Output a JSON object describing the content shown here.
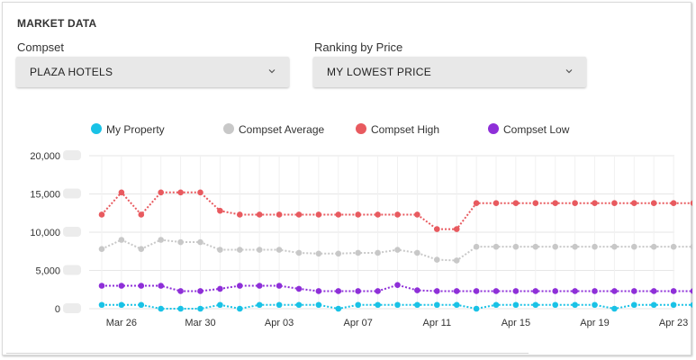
{
  "panel": {
    "title": "MARKET DATA"
  },
  "compset": {
    "label": "Compset",
    "value": "PLAZA HOTELS"
  },
  "ranking": {
    "label": "Ranking by Price",
    "value": "MY LOWEST PRICE"
  },
  "colors": {
    "my_property": "#19c2e6",
    "compset_average": "#c8c8c8",
    "compset_high": "#e85a5f",
    "compset_low": "#8e2fd8"
  },
  "icons": {
    "dropdown": "chevron-down-icon"
  },
  "chart_data": {
    "type": "line",
    "legend": {
      "placement": "top",
      "items": [
        "My Property",
        "Compset Average",
        "Compset High",
        "Compset Low"
      ]
    },
    "x": [
      "Mar 25",
      "Mar 26",
      "Mar 27",
      "Mar 28",
      "Mar 29",
      "Mar 30",
      "Mar 31",
      "Apr 01",
      "Apr 02",
      "Apr 03",
      "Apr 04",
      "Apr 05",
      "Apr 06",
      "Apr 07",
      "Apr 08",
      "Apr 09",
      "Apr 10",
      "Apr 11",
      "Apr 12",
      "Apr 13",
      "Apr 14",
      "Apr 15",
      "Apr 16",
      "Apr 17",
      "Apr 18",
      "Apr 19",
      "Apr 20",
      "Apr 21",
      "Apr 22",
      "Apr 23",
      "Apr 24"
    ],
    "x_tick_labels": [
      "Mar 26",
      "Mar 30",
      "Apr 03",
      "Apr 07",
      "Apr 11",
      "Apr 15",
      "Apr 19",
      "Apr 23"
    ],
    "y_tick_labels": [
      "20,000",
      "15,000",
      "10,000",
      "5,000",
      "0"
    ],
    "ylim": [
      0,
      20000
    ],
    "grid": true,
    "series": [
      {
        "name": "Compset High",
        "color": "#e85a5f",
        "values": [
          12300,
          15200,
          12300,
          15200,
          15200,
          15200,
          12800,
          12300,
          12300,
          12300,
          12300,
          12300,
          12300,
          12300,
          12300,
          12300,
          12300,
          10400,
          10400,
          13800,
          13800,
          13800,
          13800,
          13800,
          13800,
          13800,
          13800,
          13800,
          13800,
          13800,
          13800
        ]
      },
      {
        "name": "Compset Average",
        "color": "#c8c8c8",
        "values": [
          7800,
          9000,
          7800,
          9000,
          8700,
          8700,
          7700,
          7700,
          7700,
          7700,
          7300,
          7200,
          7200,
          7300,
          7300,
          7700,
          7300,
          6400,
          6300,
          8100,
          8100,
          8100,
          8100,
          8100,
          8100,
          8100,
          8100,
          8100,
          8100,
          8100,
          8100
        ]
      },
      {
        "name": "Compset Low",
        "color": "#8e2fd8",
        "values": [
          3000,
          3000,
          3000,
          3000,
          2300,
          2300,
          2600,
          3000,
          3000,
          3000,
          2600,
          2300,
          2300,
          2300,
          2300,
          3100,
          2400,
          2300,
          2300,
          2300,
          2300,
          2300,
          2300,
          2300,
          2300,
          2300,
          2300,
          2300,
          2300,
          2300,
          2300
        ]
      },
      {
        "name": "My Property",
        "color": "#19c2e6",
        "values": [
          500,
          500,
          500,
          0,
          0,
          0,
          500,
          0,
          500,
          500,
          500,
          500,
          0,
          500,
          500,
          500,
          500,
          500,
          500,
          0,
          500,
          500,
          500,
          500,
          500,
          500,
          0,
          500,
          500,
          500,
          500
        ]
      }
    ]
  }
}
